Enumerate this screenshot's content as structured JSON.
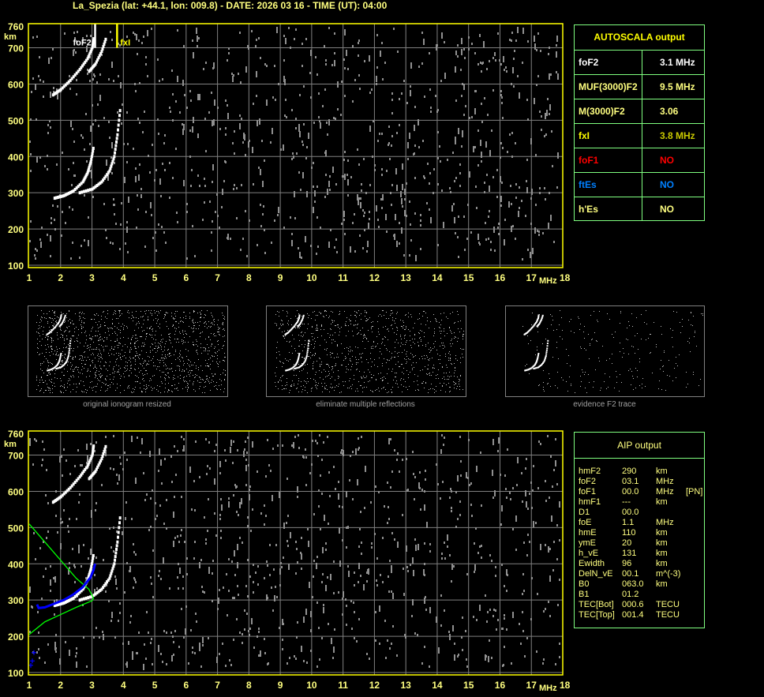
{
  "header": {
    "title": "La_Spezia (lat: +44.1, lon: 009.8) - DATE: 2026 03 16 - TIME (UT): 04:00"
  },
  "autoscala": {
    "title": "AUTOSCALA output",
    "rows": [
      {
        "key": "foF2",
        "value": "3.1 MHz",
        "color": "#ffffff"
      },
      {
        "key": "MUF(3000)F2",
        "value": "9.5 MHz",
        "color": "#ffff80"
      },
      {
        "key": "M(3000)F2",
        "value": "3.06",
        "color": "#ffff80"
      },
      {
        "key": "fxI",
        "value": "3.8 MHz",
        "color": "#ffff00",
        "value_color": "#c8c800"
      },
      {
        "key": "foF1",
        "value": "NO",
        "color": "#ff0000"
      },
      {
        "key": "ftEs",
        "value": "NO",
        "color": "#0080ff"
      },
      {
        "key": "h'Es",
        "value": "NO",
        "color": "#ffff80"
      }
    ]
  },
  "aip": {
    "title": "AIP output",
    "rows": [
      [
        "hmF2",
        "290",
        "km",
        ""
      ],
      [
        "foF2",
        "03.1",
        "MHz",
        ""
      ],
      [
        "foF1",
        "00.0",
        "MHz",
        "[PN]"
      ],
      [
        "hmF1",
        "---",
        "km",
        ""
      ],
      [
        "D1",
        "00.0",
        "",
        ""
      ],
      [
        "foE",
        "1.1",
        "MHz",
        ""
      ],
      [
        "hmE",
        "110",
        "km",
        ""
      ],
      [
        "ymE",
        "20",
        "km",
        ""
      ],
      [
        "h_vE",
        "131",
        "km",
        ""
      ],
      [
        "Ewidth",
        "96",
        "km",
        ""
      ],
      [
        "DelN_vE",
        "00.1",
        "m^(-3)",
        ""
      ],
      [
        "B0",
        "063.0",
        "km",
        ""
      ],
      [
        "B1",
        "01.2",
        "",
        ""
      ],
      [
        "TEC[Bot]",
        "000.6",
        "TECU",
        ""
      ],
      [
        "TEC[Top]",
        "001.4",
        "TECU",
        ""
      ]
    ]
  },
  "thumbnails": {
    "captions": [
      "original ionogram resized",
      "eliminate multiple reflections",
      "evidence F2 trace"
    ]
  },
  "chart_data": [
    {
      "type": "scatter",
      "xlabel": "MHz",
      "ylabel": "km",
      "xlim": [
        1,
        18
      ],
      "ylim": [
        100,
        760
      ],
      "xticks": [
        "1",
        "2",
        "3",
        "4",
        "5",
        "6",
        "7",
        "8",
        "9",
        "10",
        "11",
        "12",
        "13",
        "14",
        "15",
        "16",
        "17",
        "18"
      ],
      "yticks": [
        "760",
        "700",
        "600",
        "500",
        "400",
        "300",
        "200",
        "100"
      ],
      "grid": true,
      "markers": [
        {
          "label": "foF2",
          "x": 3.1,
          "color": "#ffffff"
        },
        {
          "label": "fxI",
          "x": 3.8,
          "color": "#ffff00"
        }
      ],
      "traces": [
        {
          "color": "#ffffff",
          "points": [
            [
              1.8,
              285
            ],
            [
              2.1,
              292
            ],
            [
              2.4,
              305
            ],
            [
              2.7,
              330
            ],
            [
              2.85,
              355
            ],
            [
              2.95,
              385
            ],
            [
              3.05,
              430
            ]
          ]
        },
        {
          "color": "#ffffff",
          "points": [
            [
              2.6,
              300
            ],
            [
              3.0,
              310
            ],
            [
              3.3,
              330
            ],
            [
              3.55,
              360
            ],
            [
              3.7,
              400
            ],
            [
              3.8,
              460
            ],
            [
              3.9,
              540
            ]
          ]
        },
        {
          "color": "#ffffff",
          "points": [
            [
              1.75,
              570
            ],
            [
              2.0,
              585
            ],
            [
              2.3,
              610
            ],
            [
              2.6,
              640
            ],
            [
              2.85,
              670
            ],
            [
              3.0,
              700
            ],
            [
              3.05,
              730
            ]
          ]
        },
        {
          "color": "#ffffff",
          "points": [
            [
              2.9,
              635
            ],
            [
              3.1,
              655
            ],
            [
              3.3,
              690
            ],
            [
              3.45,
              730
            ]
          ]
        }
      ]
    },
    {
      "type": "scatter",
      "xlabel": "MHz",
      "ylabel": "km",
      "xlim": [
        1,
        18
      ],
      "ylim": [
        100,
        760
      ],
      "xticks": [
        "1",
        "2",
        "3",
        "4",
        "5",
        "6",
        "7",
        "8",
        "9",
        "10",
        "11",
        "12",
        "13",
        "14",
        "15",
        "16",
        "17",
        "18"
      ],
      "yticks": [
        "760",
        "700",
        "600",
        "500",
        "400",
        "300",
        "200",
        "100"
      ],
      "grid": true,
      "traces": [
        {
          "color": "#ffffff",
          "points": [
            [
              1.8,
              285
            ],
            [
              2.1,
              292
            ],
            [
              2.4,
              305
            ],
            [
              2.7,
              330
            ],
            [
              2.85,
              355
            ],
            [
              2.95,
              385
            ],
            [
              3.05,
              430
            ]
          ]
        },
        {
          "color": "#ffffff",
          "points": [
            [
              2.6,
              300
            ],
            [
              3.0,
              310
            ],
            [
              3.3,
              330
            ],
            [
              3.55,
              360
            ],
            [
              3.7,
              400
            ],
            [
              3.8,
              460
            ],
            [
              3.9,
              540
            ]
          ]
        },
        {
          "color": "#ffffff",
          "points": [
            [
              1.75,
              570
            ],
            [
              2.0,
              585
            ],
            [
              2.3,
              610
            ],
            [
              2.6,
              640
            ],
            [
              2.85,
              670
            ],
            [
              3.0,
              700
            ],
            [
              3.05,
              730
            ]
          ]
        },
        {
          "color": "#ffffff",
          "points": [
            [
              2.9,
              635
            ],
            [
              3.1,
              655
            ],
            [
              3.3,
              690
            ],
            [
              3.45,
              730
            ]
          ]
        }
      ],
      "profile": {
        "color": "#00ff00",
        "points": [
          [
            1.0,
            510
          ],
          [
            1.5,
            460
          ],
          [
            2.0,
            410
          ],
          [
            2.5,
            360
          ],
          [
            2.9,
            330
          ],
          [
            3.05,
            305
          ],
          [
            3.0,
            298
          ],
          [
            2.5,
            280
          ],
          [
            2.0,
            260
          ],
          [
            1.5,
            240
          ],
          [
            1.0,
            205
          ]
        ]
      },
      "fitted": {
        "color": "#0000ff",
        "points": [
          [
            1.25,
            288
          ],
          [
            1.3,
            278
          ],
          [
            1.5,
            280
          ],
          [
            1.8,
            290
          ],
          [
            2.1,
            300
          ],
          [
            2.4,
            315
          ],
          [
            2.7,
            335
          ],
          [
            2.95,
            362
          ],
          [
            3.05,
            383
          ],
          [
            3.1,
            400
          ]
        ]
      },
      "e_layer": {
        "color": "#0000ff",
        "points": [
          [
            1.05,
            120
          ],
          [
            1.1,
            132
          ],
          [
            1.15,
            155
          ]
        ]
      }
    }
  ]
}
